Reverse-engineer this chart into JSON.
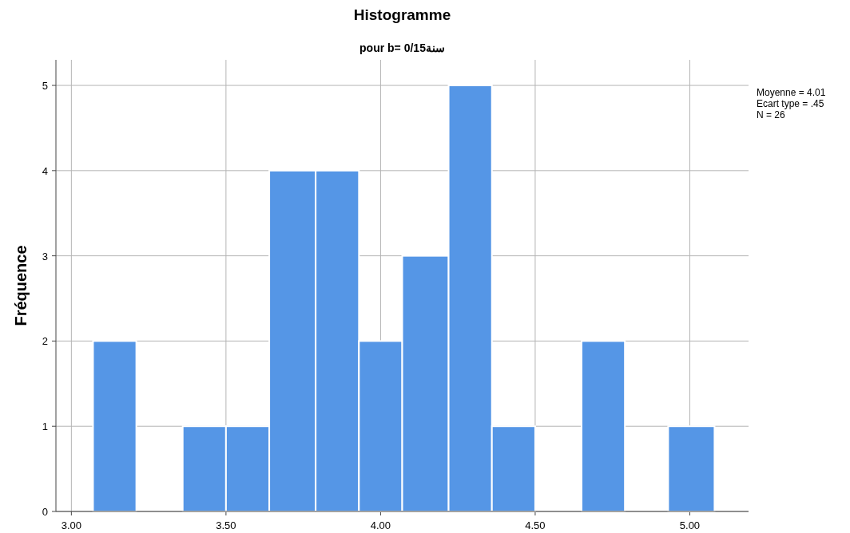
{
  "chart_data": {
    "type": "histogram",
    "title": "Histogramme",
    "subtitle": "pour b= 0/15سنة",
    "ylabel": "Fréquence",
    "bins": [
      3.07,
      3.21,
      3.36,
      3.5,
      3.64,
      3.79,
      3.93,
      4.07,
      4.22,
      4.36,
      4.5,
      4.65,
      4.79,
      4.93,
      5.08
    ],
    "values": [
      2,
      0,
      1,
      1,
      4,
      4,
      2,
      3,
      5,
      1,
      0,
      2,
      0,
      1
    ],
    "color": "#5596e6",
    "xlim": [
      2.95,
      5.19
    ],
    "xticks": [
      {
        "value": 3,
        "label": "3.00"
      },
      {
        "value": 3.5,
        "label": "3.50"
      },
      {
        "value": 4,
        "label": "4.00"
      },
      {
        "value": 4.5,
        "label": "4.50"
      },
      {
        "value": 5,
        "label": "5.00"
      }
    ],
    "ylim": [
      0,
      5.3
    ],
    "yticks": [
      0,
      1,
      2,
      3,
      4,
      5
    ],
    "grid": true,
    "annotations": [
      "Moyenne = 4.01",
      "Ecart type = .45",
      "N = 26"
    ]
  }
}
